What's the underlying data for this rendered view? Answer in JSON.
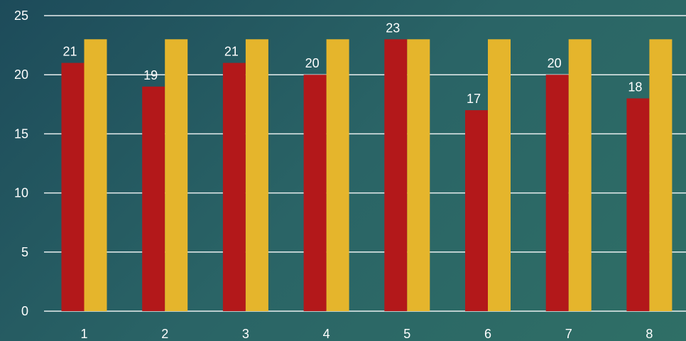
{
  "chart_data": {
    "type": "bar",
    "title": "",
    "xlabel": "",
    "ylabel": "",
    "categories": [
      "1",
      "2",
      "3",
      "4",
      "5",
      "6",
      "7",
      "8"
    ],
    "ylim": [
      0,
      25
    ],
    "yticks": [
      0,
      5,
      10,
      15,
      20,
      25
    ],
    "grid": true,
    "legend": "none",
    "series": [
      {
        "color": "#b3181a",
        "values": [
          21,
          19,
          21,
          20,
          23,
          17,
          20,
          18
        ],
        "show_labels": true
      },
      {
        "color": "#e5b52c",
        "values": [
          23,
          23,
          23,
          23,
          23,
          23,
          23,
          23
        ],
        "show_labels": false
      }
    ]
  }
}
